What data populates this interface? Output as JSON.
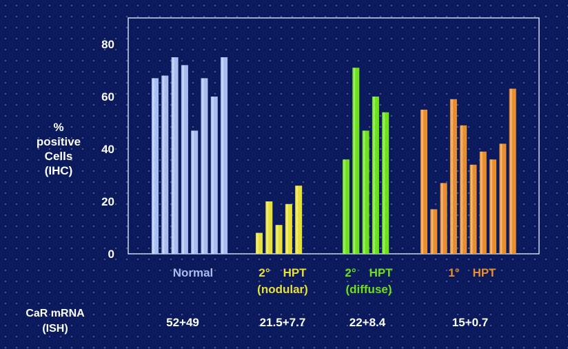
{
  "chart_data": {
    "type": "bar",
    "ylabel": [
      "%",
      "positive",
      "Cells",
      "(IHC)"
    ],
    "ylim": [
      0,
      90
    ],
    "yticks": [
      "0",
      "20",
      "40",
      "60",
      "80"
    ],
    "grid": false,
    "groups": [
      {
        "label": [
          "Normal"
        ],
        "color": "#a9bdf0",
        "values": [
          67,
          68,
          75,
          72,
          47,
          67,
          60,
          75
        ]
      },
      {
        "label": [
          "2°    HPT",
          "(nodular)"
        ],
        "color": "#e8e03a",
        "values": [
          8,
          20,
          11,
          19,
          26
        ]
      },
      {
        "label": [
          "2°    HPT",
          "(diffuse)"
        ],
        "color": "#6ee01c",
        "values": [
          36,
          71,
          47,
          60,
          54
        ]
      },
      {
        "label": [
          "1°    HPT"
        ],
        "color": "#e98e2e",
        "values": [
          55,
          17,
          27,
          59,
          49,
          34,
          39,
          36,
          42,
          63
        ]
      }
    ]
  },
  "mrna": {
    "label": [
      "CaR mRNA",
      "(ISH)"
    ],
    "values": [
      "52+49",
      "21.5+7.7",
      "22+8.4",
      "15+0.7"
    ]
  }
}
